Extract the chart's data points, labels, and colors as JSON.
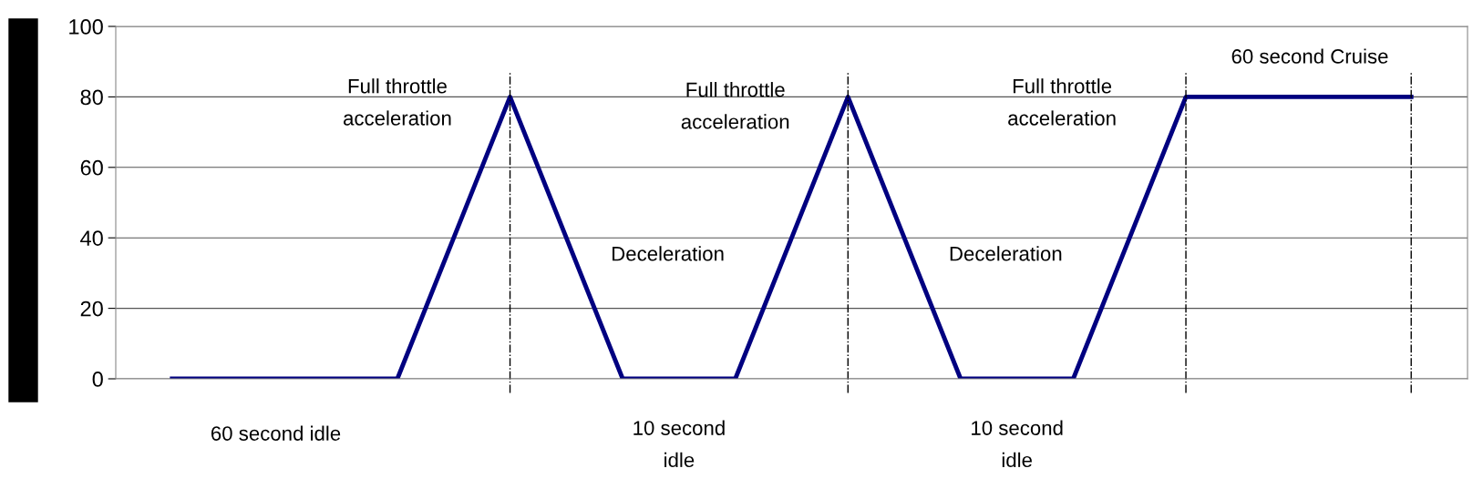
{
  "chart_data": {
    "type": "line",
    "categories": [
      null,
      null,
      null,
      null,
      null,
      null,
      null,
      null,
      null,
      null,
      null,
      null
    ],
    "series": [
      {
        "color": "#000080",
        "values": [
          0,
          0,
          0,
          80,
          0,
          0,
          80,
          0,
          0,
          80,
          80,
          80
        ]
      }
    ],
    "ylim": [
      0,
      100
    ],
    "yticks": [
      0,
      20,
      40,
      60,
      80,
      100
    ],
    "grid": true,
    "marker": "none",
    "line_style": "solid",
    "annotations": [
      "60 second idle",
      "Full throttle acceleration",
      "Deceleration",
      "10 second idle",
      "Full throttle acceleration",
      "Deceleration",
      "10 second idle",
      "Full throttle acceleration",
      "60 second Cruise"
    ]
  }
}
